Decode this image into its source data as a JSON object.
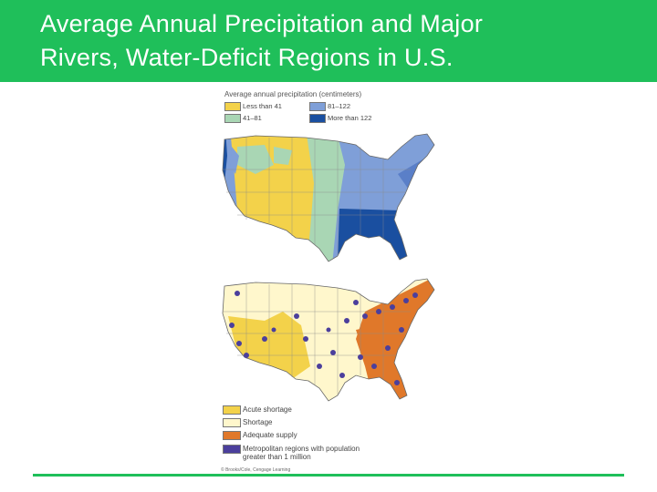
{
  "slide": {
    "title_line1": "Average Annual Precipitation and Major",
    "title_line2": "Rivers, Water-Deficit Regions in U.S."
  },
  "precipitation_map": {
    "legend_title": "Average annual precipitation (centimeters)",
    "categories": [
      {
        "label": "Less than 41",
        "color": "#f3d24a"
      },
      {
        "label": "41–81",
        "color": "#a9d6b4"
      },
      {
        "label": "81–122",
        "color": "#7f9fd8"
      },
      {
        "label": "More than 122",
        "color": "#1a4fa0"
      }
    ]
  },
  "water_deficit_map": {
    "legend": [
      {
        "label": "Acute shortage",
        "color": "#f3d24a"
      },
      {
        "label": "Shortage",
        "color": "#fff7cc"
      },
      {
        "label": "Adequate supply",
        "color": "#e0782a"
      },
      {
        "label": "Metropolitan regions with population greater than 1 million",
        "color": "#4b3f9c"
      }
    ],
    "credit": "© Brooks/Cole, Cengage Learning"
  }
}
